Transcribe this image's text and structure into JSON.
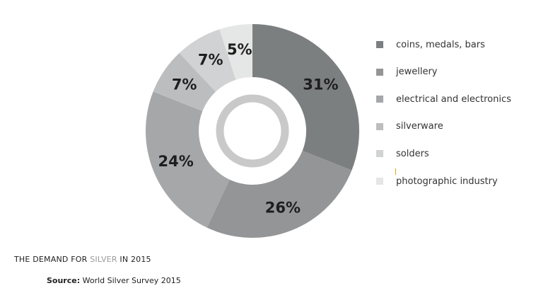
{
  "chart_data": {
    "type": "pie",
    "donut": true,
    "slices": [
      {
        "label": "coins, medals, bars",
        "value": 31,
        "display": "31%",
        "color": "#7c7f80"
      },
      {
        "label": "jewellery",
        "value": 26,
        "display": "26%",
        "color": "#939596"
      },
      {
        "label": "electrical and electronics",
        "value": 24,
        "display": "24%",
        "color": "#a5a7a8"
      },
      {
        "label": "silverware",
        "value": 7,
        "display": "7%",
        "color": "#bcbdbe"
      },
      {
        "label": "solders",
        "value": 7,
        "display": "7%",
        "color": "#d1d2d3"
      },
      {
        "label": "photographic industry",
        "value": 5,
        "display": "5%",
        "color": "#e5e6e6"
      }
    ],
    "legend_position": "right"
  },
  "title": {
    "prefix": "THE DEMAND FOR ",
    "highlight": "SILVER",
    "suffix": " IN 2015"
  },
  "source": {
    "key": "Source:",
    "text": " World Silver Survey 2015"
  },
  "colors": {
    "center_ring": "#c9c9c9",
    "highlight_text": "#9a9a9a",
    "tick_mark": "#e0a400"
  }
}
